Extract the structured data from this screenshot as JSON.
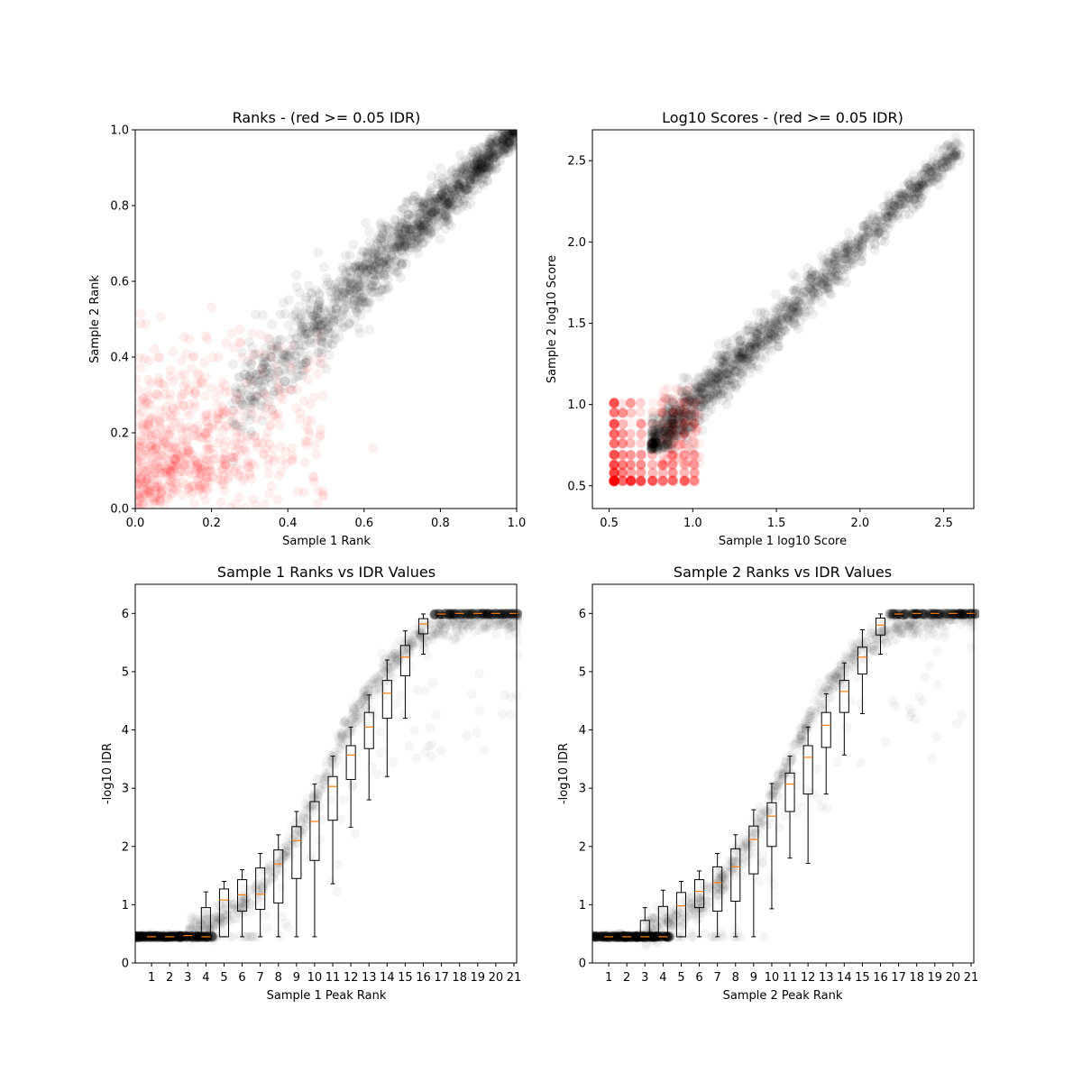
{
  "chart_data": [
    {
      "id": "ranks",
      "type": "scatter",
      "title": "Ranks - (red >= 0.05 IDR)",
      "xlabel": "Sample 1 Rank",
      "ylabel": "Sample 2 Rank",
      "xlim": [
        0,
        1
      ],
      "ylim": [
        0,
        1
      ],
      "xticks": [
        "0.0",
        "0.2",
        "0.4",
        "0.6",
        "0.8",
        "1.0"
      ],
      "yticks": [
        "0.0",
        "0.2",
        "0.4",
        "0.6",
        "0.8",
        "1.0"
      ],
      "grid": false,
      "colors": {
        "pass": "#000000",
        "fail": "#ff0000"
      },
      "point_alpha": 0.06,
      "idr_threshold": 0.05,
      "threshold_rank": 0.3,
      "pass_trend": {
        "x": [
          0.25,
          1.0
        ],
        "y": [
          0.27,
          1.0
        ],
        "spread": 0.07
      },
      "fail_region": {
        "x": [
          0.0,
          0.5
        ],
        "y": [
          0.0,
          0.6
        ]
      }
    },
    {
      "id": "scores",
      "type": "scatter",
      "title": "Log10 Scores - (red >= 0.05 IDR)",
      "xlabel": "Sample 1 log10 Score",
      "ylabel": "Sample 2 log10 Score",
      "xlim": [
        0.4,
        2.68
      ],
      "ylim": [
        0.36,
        2.69
      ],
      "xticks": [
        "0.5",
        "1.0",
        "1.5",
        "2.0",
        "2.5"
      ],
      "yticks": [
        "0.5",
        "1.0",
        "1.5",
        "2.0",
        "2.5"
      ],
      "grid": false,
      "colors": {
        "pass": "#000000",
        "fail": "#ff0000"
      },
      "point_alpha": 0.06,
      "pass_trend": {
        "x": [
          0.75,
          2.6
        ],
        "y": [
          0.74,
          2.58
        ],
        "spread": 0.07
      },
      "fail_cluster": {
        "x": [
          0.5,
          1.0
        ],
        "y": [
          0.5,
          1.05
        ]
      }
    },
    {
      "id": "s1_idr",
      "type": "box",
      "title": "Sample 1 Ranks vs IDR Values",
      "xlabel": "Sample 1 Peak Rank",
      "ylabel": "-log10 IDR",
      "xlim": [
        0,
        21
      ],
      "ylim": [
        0,
        6.5
      ],
      "xticks": [
        "1",
        "2",
        "3",
        "4",
        "5",
        "6",
        "7",
        "8",
        "9",
        "10",
        "11",
        "12",
        "13",
        "14",
        "15",
        "16",
        "17",
        "18",
        "19",
        "20",
        "21"
      ],
      "yticks": [
        "0",
        "1",
        "2",
        "3",
        "4",
        "5",
        "6"
      ],
      "grid": false,
      "colors": {
        "box": "#000000",
        "median": "#ff7f0e",
        "points": "#000000"
      },
      "boxes": [
        {
          "pos": 1,
          "whislo": 0.45,
          "q1": 0.45,
          "med": 0.45,
          "q3": 0.45,
          "whishi": 0.45
        },
        {
          "pos": 2,
          "whislo": 0.45,
          "q1": 0.45,
          "med": 0.45,
          "q3": 0.45,
          "whishi": 0.45
        },
        {
          "pos": 3,
          "whislo": 0.45,
          "q1": 0.45,
          "med": 0.47,
          "q3": 0.5,
          "whishi": 0.5
        },
        {
          "pos": 4,
          "whislo": 0.45,
          "q1": 0.45,
          "med": 0.45,
          "q3": 0.95,
          "whishi": 1.22
        },
        {
          "pos": 5,
          "whislo": 0.45,
          "q1": 0.45,
          "med": 1.08,
          "q3": 1.27,
          "whishi": 1.4
        },
        {
          "pos": 6,
          "whislo": 0.45,
          "q1": 0.89,
          "med": 1.17,
          "q3": 1.43,
          "whishi": 1.6
        },
        {
          "pos": 7,
          "whislo": 0.45,
          "q1": 0.92,
          "med": 1.18,
          "q3": 1.63,
          "whishi": 1.88
        },
        {
          "pos": 8,
          "whislo": 0.45,
          "q1": 1.03,
          "med": 1.7,
          "q3": 1.94,
          "whishi": 2.2
        },
        {
          "pos": 9,
          "whislo": 0.45,
          "q1": 1.45,
          "med": 2.1,
          "q3": 2.34,
          "whishi": 2.6
        },
        {
          "pos": 10,
          "whislo": 0.45,
          "q1": 1.76,
          "med": 2.43,
          "q3": 2.77,
          "whishi": 3.07
        },
        {
          "pos": 11,
          "whislo": 1.36,
          "q1": 2.45,
          "med": 3.03,
          "q3": 3.2,
          "whishi": 3.55
        },
        {
          "pos": 12,
          "whislo": 2.33,
          "q1": 3.15,
          "med": 3.57,
          "q3": 3.73,
          "whishi": 4.05
        },
        {
          "pos": 13,
          "whislo": 2.8,
          "q1": 3.68,
          "med": 4.05,
          "q3": 4.3,
          "whishi": 4.6
        },
        {
          "pos": 14,
          "whislo": 3.2,
          "q1": 4.2,
          "med": 4.63,
          "q3": 4.85,
          "whishi": 5.2
        },
        {
          "pos": 15,
          "whislo": 4.2,
          "q1": 4.93,
          "med": 5.25,
          "q3": 5.45,
          "whishi": 5.7
        },
        {
          "pos": 16,
          "whislo": 5.3,
          "q1": 5.65,
          "med": 5.82,
          "q3": 5.91,
          "whishi": 5.99
        },
        {
          "pos": 17,
          "whislo": 5.92,
          "q1": 5.96,
          "med": 5.99,
          "q3": 6.0,
          "whishi": 6.0
        },
        {
          "pos": 18,
          "whislo": 6.0,
          "q1": 6.0,
          "med": 6.0,
          "q3": 6.0,
          "whishi": 6.0
        },
        {
          "pos": 19,
          "whislo": 6.0,
          "q1": 6.0,
          "med": 6.0,
          "q3": 6.0,
          "whishi": 6.0
        },
        {
          "pos": 20,
          "whislo": 6.0,
          "q1": 6.0,
          "med": 6.0,
          "q3": 6.0,
          "whishi": 6.0
        },
        {
          "pos": 21,
          "whislo": 6.0,
          "q1": 6.0,
          "med": 6.0,
          "q3": 6.0,
          "whishi": 6.0
        }
      ]
    },
    {
      "id": "s2_idr",
      "type": "box",
      "title": "Sample 2 Ranks vs IDR Values",
      "xlabel": "Sample 2 Peak Rank",
      "ylabel": "-log10 IDR",
      "xlim": [
        0,
        21
      ],
      "ylim": [
        0,
        6.5
      ],
      "xticks": [
        "1",
        "2",
        "3",
        "4",
        "5",
        "6",
        "7",
        "8",
        "9",
        "10",
        "11",
        "12",
        "13",
        "14",
        "15",
        "16",
        "17",
        "18",
        "19",
        "20",
        "21"
      ],
      "yticks": [
        "0",
        "1",
        "2",
        "3",
        "4",
        "5",
        "6"
      ],
      "grid": false,
      "colors": {
        "box": "#000000",
        "median": "#ff7f0e",
        "points": "#000000"
      },
      "boxes": [
        {
          "pos": 1,
          "whislo": 0.45,
          "q1": 0.45,
          "med": 0.45,
          "q3": 0.45,
          "whishi": 0.45
        },
        {
          "pos": 2,
          "whislo": 0.45,
          "q1": 0.45,
          "med": 0.45,
          "q3": 0.45,
          "whishi": 0.45
        },
        {
          "pos": 3,
          "whislo": 0.45,
          "q1": 0.45,
          "med": 0.45,
          "q3": 0.73,
          "whishi": 0.95
        },
        {
          "pos": 4,
          "whislo": 0.45,
          "q1": 0.45,
          "med": 0.45,
          "q3": 0.97,
          "whishi": 1.25
        },
        {
          "pos": 5,
          "whislo": 0.45,
          "q1": 0.45,
          "med": 0.98,
          "q3": 1.21,
          "whishi": 1.4
        },
        {
          "pos": 6,
          "whislo": 0.45,
          "q1": 0.95,
          "med": 1.23,
          "q3": 1.43,
          "whishi": 1.58
        },
        {
          "pos": 7,
          "whislo": 0.45,
          "q1": 0.89,
          "med": 1.38,
          "q3": 1.65,
          "whishi": 1.88
        },
        {
          "pos": 8,
          "whislo": 0.45,
          "q1": 1.06,
          "med": 1.65,
          "q3": 1.96,
          "whishi": 2.2
        },
        {
          "pos": 9,
          "whislo": 0.45,
          "q1": 1.53,
          "med": 2.12,
          "q3": 2.35,
          "whishi": 2.63
        },
        {
          "pos": 10,
          "whislo": 0.93,
          "q1": 2.0,
          "med": 2.52,
          "q3": 2.75,
          "whishi": 3.08
        },
        {
          "pos": 11,
          "whislo": 1.8,
          "q1": 2.6,
          "med": 3.07,
          "q3": 3.26,
          "whishi": 3.55
        },
        {
          "pos": 12,
          "whislo": 1.71,
          "q1": 2.9,
          "med": 3.53,
          "q3": 3.73,
          "whishi": 4.05
        },
        {
          "pos": 13,
          "whislo": 2.9,
          "q1": 3.7,
          "med": 4.08,
          "q3": 4.3,
          "whishi": 4.62
        },
        {
          "pos": 14,
          "whislo": 3.57,
          "q1": 4.3,
          "med": 4.66,
          "q3": 4.85,
          "whishi": 5.15
        },
        {
          "pos": 15,
          "whislo": 4.28,
          "q1": 4.96,
          "med": 5.25,
          "q3": 5.42,
          "whishi": 5.72
        },
        {
          "pos": 16,
          "whislo": 5.3,
          "q1": 5.63,
          "med": 5.8,
          "q3": 5.92,
          "whishi": 5.99
        },
        {
          "pos": 17,
          "whislo": 5.92,
          "q1": 5.96,
          "med": 5.99,
          "q3": 6.0,
          "whishi": 6.0
        },
        {
          "pos": 18,
          "whislo": 6.0,
          "q1": 6.0,
          "med": 6.0,
          "q3": 6.0,
          "whishi": 6.0
        },
        {
          "pos": 19,
          "whislo": 6.0,
          "q1": 6.0,
          "med": 6.0,
          "q3": 6.0,
          "whishi": 6.0
        },
        {
          "pos": 20,
          "whislo": 6.0,
          "q1": 6.0,
          "med": 6.0,
          "q3": 6.0,
          "whishi": 6.0
        },
        {
          "pos": 21,
          "whislo": 6.0,
          "q1": 6.0,
          "med": 6.0,
          "q3": 6.0,
          "whishi": 6.0
        }
      ]
    }
  ]
}
